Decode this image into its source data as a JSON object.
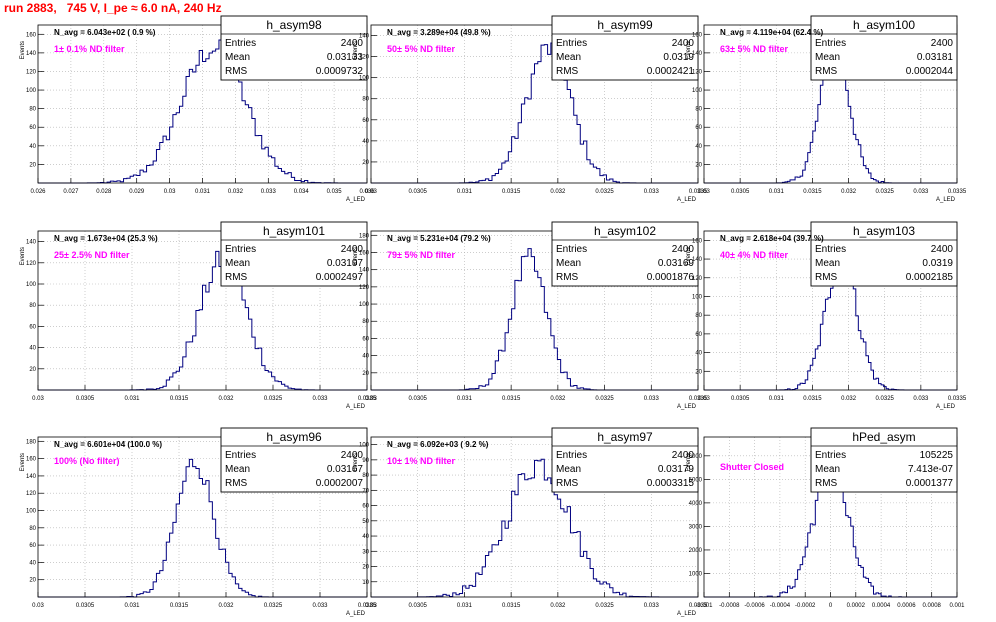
{
  "page_title": "run 2883,   745 V, I_pe ≈ 6.0 nA, 240 Hz",
  "colors": {
    "hist_line": "#000080",
    "title_red": "#ff0000",
    "magenta": "#ff00ff",
    "grid": "#b0b0b0",
    "text": "#000000"
  },
  "chart_data": [
    {
      "type": "histogram",
      "name": "h_asym98",
      "entries": "2400",
      "mean": "0.03133",
      "rms": "0.0009732",
      "navg_label": "N_avg = 6.043e+02 ( 0.9 %)",
      "filter_label": "1± 0.1% ND filter",
      "xlim": [
        0.026,
        0.036
      ],
      "ylim": [
        0,
        170
      ],
      "ylabel": "Events",
      "xlabel": "A_LED",
      "x_ticks": [
        "0.026",
        "0.027",
        "0.028",
        "0.029",
        "0.03",
        "0.031",
        "0.032",
        "0.033",
        "0.034",
        "0.035",
        "0.036"
      ],
      "y_ticks": [
        "20",
        "40",
        "60",
        "80",
        "100",
        "120",
        "140",
        "160"
      ],
      "y_tick_values": [
        20,
        40,
        60,
        80,
        100,
        120,
        140,
        160
      ],
      "grid": true,
      "stats_box": "top-right",
      "shape_mean": 0.03133,
      "shape_sigma": 0.00097,
      "peak": 165
    },
    {
      "type": "histogram",
      "name": "h_asym99",
      "entries": "2400",
      "mean": "0.0319",
      "rms": "0.0002421",
      "navg_label": "N_avg = 3.289e+04 (49.8 %)",
      "filter_label": "50± 5% ND filter",
      "xlim": [
        0.03,
        0.0335
      ],
      "ylim": [
        0,
        150
      ],
      "ylabel": "Events",
      "xlabel": "A_LED",
      "x_ticks": [
        "0.03",
        "0.0305",
        "0.031",
        "0.0315",
        "0.032",
        "0.0325",
        "0.033",
        "0.0335"
      ],
      "y_ticks": [
        "20",
        "40",
        "60",
        "80",
        "100",
        "120",
        "140"
      ],
      "y_tick_values": [
        20,
        40,
        60,
        80,
        100,
        120,
        140
      ],
      "grid": true,
      "stats_box": "top-right",
      "shape_mean": 0.0319,
      "shape_sigma": 0.000242,
      "peak": 145
    },
    {
      "type": "histogram",
      "name": "h_asym100",
      "entries": "2400",
      "mean": "0.03181",
      "rms": "0.0002044",
      "navg_label": "N_avg = 4.119e+04 (62.4 %)",
      "filter_label": "63± 5% ND filter",
      "xlim": [
        0.03,
        0.0335
      ],
      "ylim": [
        0,
        170
      ],
      "ylabel": "Events",
      "xlabel": "A_LED",
      "x_ticks": [
        "0.03",
        "0.0305",
        "0.031",
        "0.0315",
        "0.032",
        "0.0325",
        "0.033",
        "0.0335"
      ],
      "y_ticks": [
        "20",
        "40",
        "60",
        "80",
        "100",
        "120",
        "140",
        "160"
      ],
      "y_tick_values": [
        20,
        40,
        60,
        80,
        100,
        120,
        140,
        160
      ],
      "grid": true,
      "stats_box": "top-right",
      "shape_mean": 0.03181,
      "shape_sigma": 0.000204,
      "peak": 163
    },
    {
      "type": "histogram",
      "name": "h_asym101",
      "entries": "2400",
      "mean": "0.03197",
      "rms": "0.0002497",
      "navg_label": "N_avg = 1.673e+04 (25.3 %)",
      "filter_label": "25± 2.5% ND filter",
      "xlim": [
        0.03,
        0.0335
      ],
      "ylim": [
        0,
        150
      ],
      "ylabel": "Events",
      "xlabel": "A_LED",
      "x_ticks": [
        "0.03",
        "0.0305",
        "0.031",
        "0.0315",
        "0.032",
        "0.0325",
        "0.033",
        "0.0335"
      ],
      "y_ticks": [
        "20",
        "40",
        "60",
        "80",
        "100",
        "120",
        "140"
      ],
      "y_tick_values": [
        20,
        40,
        60,
        80,
        100,
        120,
        140
      ],
      "grid": true,
      "stats_box": "top-right",
      "shape_mean": 0.03197,
      "shape_sigma": 0.00025,
      "peak": 140
    },
    {
      "type": "histogram",
      "name": "h_asym102",
      "entries": "2400",
      "mean": "0.03169",
      "rms": "0.0001876",
      "navg_label": "N_avg = 5.231e+04 (79.2 %)",
      "filter_label": "79± 5% ND filter",
      "xlim": [
        0.03,
        0.0335
      ],
      "ylim": [
        0,
        185
      ],
      "ylabel": "Events",
      "xlabel": "A_LED",
      "x_ticks": [
        "0.03",
        "0.0305",
        "0.031",
        "0.0315",
        "0.032",
        "0.0325",
        "0.033",
        "0.0335"
      ],
      "y_ticks": [
        "20",
        "40",
        "60",
        "80",
        "100",
        "120",
        "140",
        "160",
        "180"
      ],
      "y_tick_values": [
        20,
        40,
        60,
        80,
        100,
        120,
        140,
        160,
        180
      ],
      "grid": true,
      "stats_box": "top-right",
      "shape_mean": 0.03169,
      "shape_sigma": 0.000188,
      "peak": 172
    },
    {
      "type": "histogram",
      "name": "h_asym103",
      "entries": "2400",
      "mean": "0.0319",
      "rms": "0.0002185",
      "navg_label": "N_avg = 2.618e+04 (39.7 %)",
      "filter_label": "40± 4% ND filter",
      "xlim": [
        0.03,
        0.0335
      ],
      "ylim": [
        0,
        170
      ],
      "ylabel": "Events",
      "xlabel": "A_LED",
      "x_ticks": [
        "0.03",
        "0.0305",
        "0.031",
        "0.0315",
        "0.032",
        "0.0325",
        "0.033",
        "0.0335"
      ],
      "y_ticks": [
        "20",
        "40",
        "60",
        "80",
        "100",
        "120",
        "140",
        "160"
      ],
      "y_tick_values": [
        20,
        40,
        60,
        80,
        100,
        120,
        140,
        160
      ],
      "grid": true,
      "stats_box": "top-right",
      "shape_mean": 0.0319,
      "shape_sigma": 0.000218,
      "peak": 160
    },
    {
      "type": "histogram",
      "name": "h_asym96",
      "entries": "2400",
      "mean": "0.03167",
      "rms": "0.0002007",
      "navg_label": "N_avg = 6.601e+04 (100.0 %)",
      "filter_label": "100% (No filter)",
      "xlim": [
        0.03,
        0.0335
      ],
      "ylim": [
        0,
        185
      ],
      "ylabel": "Events",
      "xlabel": "A_LED",
      "x_ticks": [
        "0.03",
        "0.0305",
        "0.031",
        "0.0315",
        "0.032",
        "0.0325",
        "0.033",
        "0.0335"
      ],
      "y_ticks": [
        "20",
        "40",
        "60",
        "80",
        "100",
        "120",
        "140",
        "160",
        "180"
      ],
      "y_tick_values": [
        20,
        40,
        60,
        80,
        100,
        120,
        140,
        160,
        180
      ],
      "grid": true,
      "stats_box": "top-right",
      "shape_mean": 0.03167,
      "shape_sigma": 0.0002,
      "peak": 178
    },
    {
      "type": "histogram",
      "name": "h_asym97",
      "entries": "2400",
      "mean": "0.03179",
      "rms": "0.0003315",
      "navg_label": "N_avg = 6.092e+03 ( 9.2 %)",
      "filter_label": "10± 1% ND filter",
      "xlim": [
        0.03,
        0.0335
      ],
      "ylim": [
        0,
        105
      ],
      "ylabel": "Events",
      "xlabel": "A_LED",
      "x_ticks": [
        "0.03",
        "0.0305",
        "0.031",
        "0.0315",
        "0.032",
        "0.0325",
        "0.033",
        "0.0335"
      ],
      "y_ticks": [
        "10",
        "20",
        "30",
        "40",
        "50",
        "60",
        "70",
        "80",
        "90",
        "100"
      ],
      "y_tick_values": [
        10,
        20,
        30,
        40,
        50,
        60,
        70,
        80,
        90,
        100
      ],
      "grid": true,
      "stats_box": "top-right",
      "shape_mean": 0.03179,
      "shape_sigma": 0.00033,
      "peak": 100
    },
    {
      "type": "histogram",
      "name": "hPed_asym",
      "entries": "105225",
      "mean": "7.413e-07",
      "rms": "0.0001377",
      "navg_label": "",
      "filter_label": "Shutter Closed",
      "xlim": [
        -0.001,
        0.001
      ],
      "ylim": [
        0,
        6800
      ],
      "ylabel": "Events",
      "xlabel": "",
      "x_ticks": [
        "-0.001",
        "-0.0008",
        "-0.0006",
        "-0.0004",
        "-0.0002",
        "0",
        "0.0002",
        "0.0004",
        "0.0006",
        "0.0008",
        "0.001"
      ],
      "y_ticks": [
        "1000",
        "2000",
        "3000",
        "4000",
        "5000",
        "6000"
      ],
      "y_tick_values": [
        1000,
        2000,
        3000,
        4000,
        5000,
        6000
      ],
      "grid": true,
      "stats_box": "top-right",
      "shape_mean": 0.0,
      "shape_sigma": 0.000138,
      "peak": 6300
    }
  ]
}
